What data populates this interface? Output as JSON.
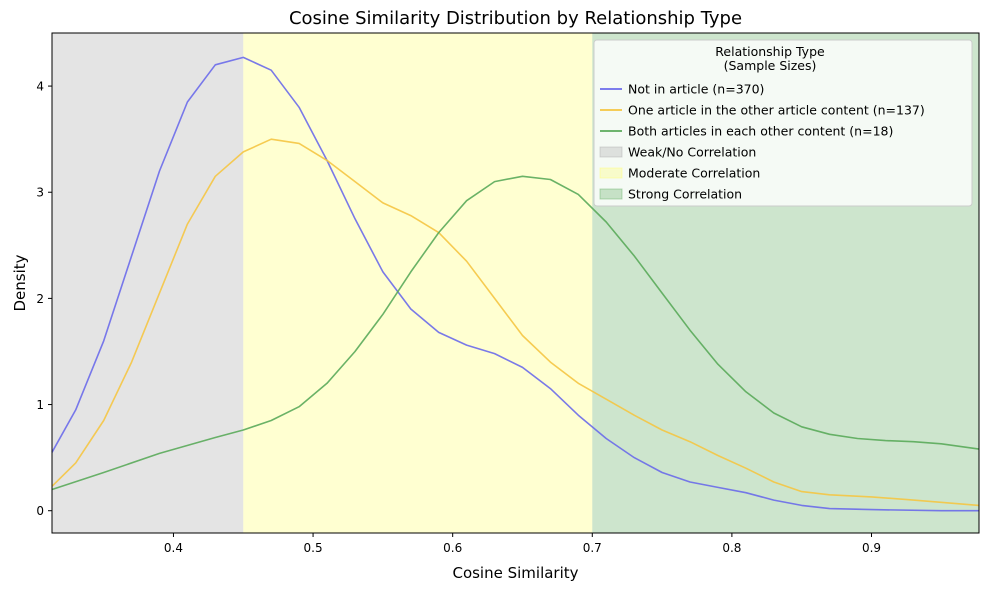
{
  "chart_data": {
    "type": "line",
    "title": "Cosine Similarity Distribution by Relationship Type",
    "xlabel": "Cosine Similarity",
    "ylabel": "Density",
    "xlim": [
      0.313,
      0.977
    ],
    "ylim": [
      -0.21,
      4.5
    ],
    "xticks": [
      0.4,
      0.5,
      0.6,
      0.7,
      0.8,
      0.9
    ],
    "yticks": [
      0,
      1,
      2,
      3,
      4
    ],
    "grid": false,
    "legend": {
      "title": "Relationship Type\n(Sample Sizes)",
      "placement": "top-right"
    },
    "regions": [
      {
        "name": "Weak/No Correlation",
        "from": 0.313,
        "to": 0.45,
        "color": "#a6a6a6"
      },
      {
        "name": "Moderate Correlation",
        "from": 0.45,
        "to": 0.7,
        "color": "#ffff66"
      },
      {
        "name": "Strong Correlation",
        "from": 0.7,
        "to": 0.977,
        "color": "#5aaa5a"
      }
    ],
    "series": [
      {
        "name": "Not in article (n=370)",
        "color": "#6a6aea",
        "points": [
          [
            0.313,
            0.55
          ],
          [
            0.33,
            0.95
          ],
          [
            0.35,
            1.6
          ],
          [
            0.37,
            2.4
          ],
          [
            0.39,
            3.2
          ],
          [
            0.41,
            3.85
          ],
          [
            0.43,
            4.2
          ],
          [
            0.45,
            4.27
          ],
          [
            0.47,
            4.15
          ],
          [
            0.49,
            3.8
          ],
          [
            0.51,
            3.3
          ],
          [
            0.53,
            2.75
          ],
          [
            0.55,
            2.25
          ],
          [
            0.57,
            1.9
          ],
          [
            0.59,
            1.68
          ],
          [
            0.61,
            1.56
          ],
          [
            0.63,
            1.48
          ],
          [
            0.65,
            1.35
          ],
          [
            0.67,
            1.15
          ],
          [
            0.69,
            0.9
          ],
          [
            0.71,
            0.68
          ],
          [
            0.73,
            0.5
          ],
          [
            0.75,
            0.36
          ],
          [
            0.77,
            0.27
          ],
          [
            0.79,
            0.22
          ],
          [
            0.81,
            0.17
          ],
          [
            0.83,
            0.1
          ],
          [
            0.85,
            0.05
          ],
          [
            0.87,
            0.02
          ],
          [
            0.9,
            0.01
          ],
          [
            0.95,
            0.0
          ],
          [
            0.977,
            0.0
          ]
        ]
      },
      {
        "name": "One article in the other article content (n=137)",
        "color": "#f5c542",
        "points": [
          [
            0.313,
            0.23
          ],
          [
            0.33,
            0.45
          ],
          [
            0.35,
            0.85
          ],
          [
            0.37,
            1.4
          ],
          [
            0.39,
            2.05
          ],
          [
            0.41,
            2.7
          ],
          [
            0.43,
            3.15
          ],
          [
            0.45,
            3.38
          ],
          [
            0.47,
            3.5
          ],
          [
            0.49,
            3.46
          ],
          [
            0.51,
            3.3
          ],
          [
            0.53,
            3.1
          ],
          [
            0.55,
            2.9
          ],
          [
            0.57,
            2.78
          ],
          [
            0.59,
            2.62
          ],
          [
            0.61,
            2.35
          ],
          [
            0.63,
            2.0
          ],
          [
            0.65,
            1.65
          ],
          [
            0.67,
            1.4
          ],
          [
            0.69,
            1.2
          ],
          [
            0.71,
            1.05
          ],
          [
            0.73,
            0.9
          ],
          [
            0.75,
            0.76
          ],
          [
            0.77,
            0.65
          ],
          [
            0.79,
            0.52
          ],
          [
            0.81,
            0.4
          ],
          [
            0.83,
            0.27
          ],
          [
            0.85,
            0.18
          ],
          [
            0.87,
            0.15
          ],
          [
            0.9,
            0.13
          ],
          [
            0.93,
            0.1
          ],
          [
            0.977,
            0.05
          ]
        ]
      },
      {
        "name": "Both articles in each other content (n=18)",
        "color": "#5aaa5a",
        "points": [
          [
            0.313,
            0.2
          ],
          [
            0.35,
            0.36
          ],
          [
            0.39,
            0.54
          ],
          [
            0.43,
            0.69
          ],
          [
            0.45,
            0.76
          ],
          [
            0.47,
            0.85
          ],
          [
            0.49,
            0.98
          ],
          [
            0.51,
            1.2
          ],
          [
            0.53,
            1.5
          ],
          [
            0.55,
            1.85
          ],
          [
            0.57,
            2.25
          ],
          [
            0.59,
            2.62
          ],
          [
            0.61,
            2.92
          ],
          [
            0.63,
            3.1
          ],
          [
            0.65,
            3.15
          ],
          [
            0.67,
            3.12
          ],
          [
            0.69,
            2.98
          ],
          [
            0.71,
            2.72
          ],
          [
            0.73,
            2.4
          ],
          [
            0.75,
            2.05
          ],
          [
            0.77,
            1.7
          ],
          [
            0.79,
            1.38
          ],
          [
            0.81,
            1.12
          ],
          [
            0.83,
            0.92
          ],
          [
            0.85,
            0.79
          ],
          [
            0.87,
            0.72
          ],
          [
            0.89,
            0.68
          ],
          [
            0.91,
            0.66
          ],
          [
            0.93,
            0.65
          ],
          [
            0.95,
            0.63
          ],
          [
            0.977,
            0.58
          ]
        ]
      }
    ]
  }
}
